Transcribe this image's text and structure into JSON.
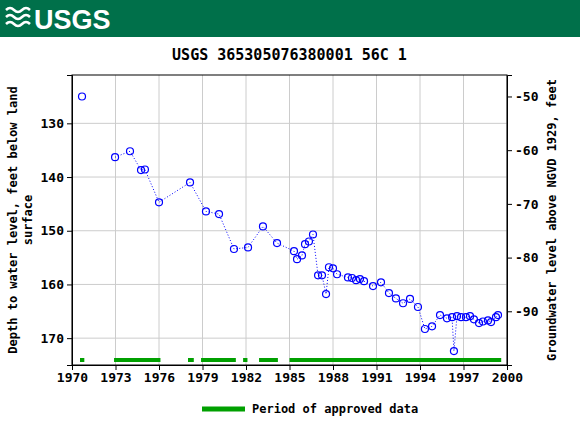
{
  "header": {
    "logo": "USGS"
  },
  "chart_data": {
    "type": "scatter",
    "title": "USGS 365305076380001 56C  1",
    "ylabel": [
      "Depth to water level, feet below land",
      "surface"
    ],
    "y2label": "Groundwater level above NGVD 1929, feet",
    "x": [
      1970.69,
      1971.8,
      1972.97,
      1974.0,
      1974.76,
      1975.03,
      1976.0,
      1978.14,
      1979.24,
      1980.14,
      1981.17,
      1982.14,
      1983.17,
      1984.14,
      1985.31,
      1985.52,
      1985.86,
      1986.07,
      1986.34,
      1986.62,
      1986.97,
      1987.24,
      1987.52,
      1987.72,
      1988.0,
      1988.28,
      1989.03,
      1989.31,
      1989.59,
      1989.86,
      1990.14,
      1990.76,
      1991.31,
      1991.86,
      1992.34,
      1992.83,
      1993.31,
      1993.86,
      1994.34,
      1994.83,
      1995.38,
      1995.86,
      1996.21,
      1996.34,
      1996.55,
      1996.83,
      1997.17,
      1997.45,
      1997.72,
      1998.07,
      1998.34,
      1998.69,
      1998.9,
      1999.24,
      1999.38
    ],
    "values": [
      125.0,
      null,
      136.3,
      135.2,
      138.7,
      138.6,
      144.7,
      141.0,
      146.4,
      146.9,
      153.4,
      153.1,
      149.2,
      152.3,
      153.8,
      155.3,
      154.6,
      152.5,
      152.0,
      150.7,
      158.3,
      158.3,
      161.8,
      156.8,
      157.0,
      158.1,
      158.7,
      158.8,
      159.2,
      159.0,
      159.4,
      160.3,
      159.6,
      161.6,
      162.6,
      163.5,
      162.7,
      164.2,
      168.3,
      167.8,
      165.7,
      166.3,
      166.1,
      172.4,
      165.9,
      166.1,
      166.1,
      165.9,
      166.5,
      167.2,
      166.9,
      166.7,
      167.0,
      166.1,
      165.7
    ],
    "color": "#0000ff",
    "marker": "circle",
    "line_style": "dotted",
    "xlim": [
      1970,
      2000
    ],
    "xticks": [
      1970,
      1973,
      1976,
      1979,
      1982,
      1985,
      1988,
      1991,
      1994,
      1997,
      2000
    ],
    "ylim": [
      121,
      175
    ],
    "yticks": [
      130,
      140,
      150,
      160,
      170
    ],
    "y2lim": [
      -46,
      -100
    ],
    "y2ticks": [
      -50,
      -60,
      -70,
      -80,
      -90
    ],
    "grid": true,
    "approved_periods": {
      "name": "Period of approved data",
      "color": "#00a000",
      "periods": [
        [
          1970.55,
          1970.85
        ],
        [
          1972.9,
          1976.1
        ],
        [
          1978.0,
          1978.4
        ],
        [
          1978.9,
          1981.3
        ],
        [
          1981.8,
          1982.1
        ],
        [
          1982.9,
          1984.2
        ],
        [
          1985.0,
          1999.6
        ]
      ]
    },
    "legend": "bottom"
  }
}
